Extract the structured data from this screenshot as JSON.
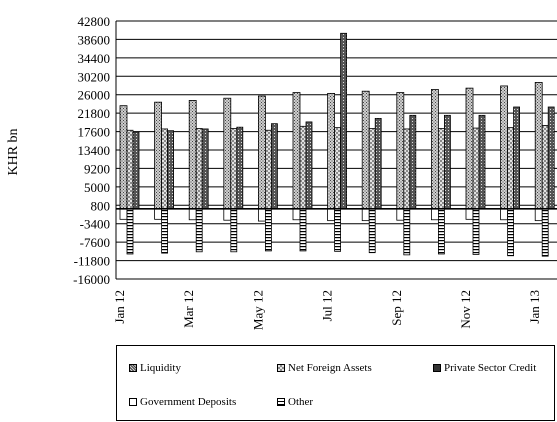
{
  "chart_data": {
    "type": "bar",
    "title": "",
    "xlabel": "",
    "ylabel": "KHR bn",
    "ylim": [
      -16000,
      42800
    ],
    "yticks": [
      42800,
      38600,
      34400,
      30200,
      26000,
      21800,
      17600,
      13400,
      9200,
      5000,
      800,
      -3400,
      -7600,
      -11800,
      -16000
    ],
    "grid": true,
    "legend_position": "bottom",
    "categories": [
      "Jan 12",
      "Feb 12",
      "Mar 12",
      "Apr 12",
      "May 12",
      "Jun 12",
      "Jul 12",
      "Aug 12",
      "Sep 12",
      "Oct 12",
      "Nov 12",
      "Dec 12",
      "Jan 13"
    ],
    "x_tick_labels": [
      "Jan 12",
      "Mar 12",
      "May 12",
      "Jul 12",
      "Sep 12",
      "Nov 12",
      "Jan 13"
    ],
    "series": [
      {
        "name": "Liquidity",
        "values": [
          23500,
          24300,
          24700,
          25200,
          25700,
          26500,
          26300,
          26800,
          26500,
          27200,
          27500,
          28000,
          28800
        ]
      },
      {
        "name": "Net Foreign Assets",
        "values": [
          17900,
          18200,
          18300,
          18300,
          17900,
          18800,
          18500,
          18300,
          18200,
          18300,
          18400,
          18500,
          19000
        ]
      },
      {
        "name": "Private Sector Credit",
        "values": [
          17500,
          17800,
          18200,
          18600,
          19400,
          19800,
          40000,
          20600,
          21300,
          21300,
          21300,
          23200,
          23200
        ]
      },
      {
        "name": "Government Deposits",
        "values": [
          -2400,
          -2400,
          -2500,
          -2600,
          -2800,
          -2500,
          -2700,
          -2700,
          -2600,
          -2500,
          -2400,
          -2500,
          -2700
        ]
      },
      {
        "name": "Other",
        "values": [
          -10300,
          -10100,
          -9800,
          -9800,
          -9600,
          -9600,
          -9700,
          -10000,
          -10500,
          -10300,
          -10400,
          -10700,
          -10800
        ]
      }
    ]
  },
  "legend": {
    "items": [
      {
        "label": "Liquidity",
        "pattern": "dots-dense"
      },
      {
        "label": "Net Foreign Assets",
        "pattern": "checker-light"
      },
      {
        "label": "Private Sector Credit",
        "pattern": "dark-dense"
      },
      {
        "label": "Government Deposits",
        "pattern": "white"
      },
      {
        "label": "Other",
        "pattern": "horizontal-stripes"
      }
    ]
  }
}
